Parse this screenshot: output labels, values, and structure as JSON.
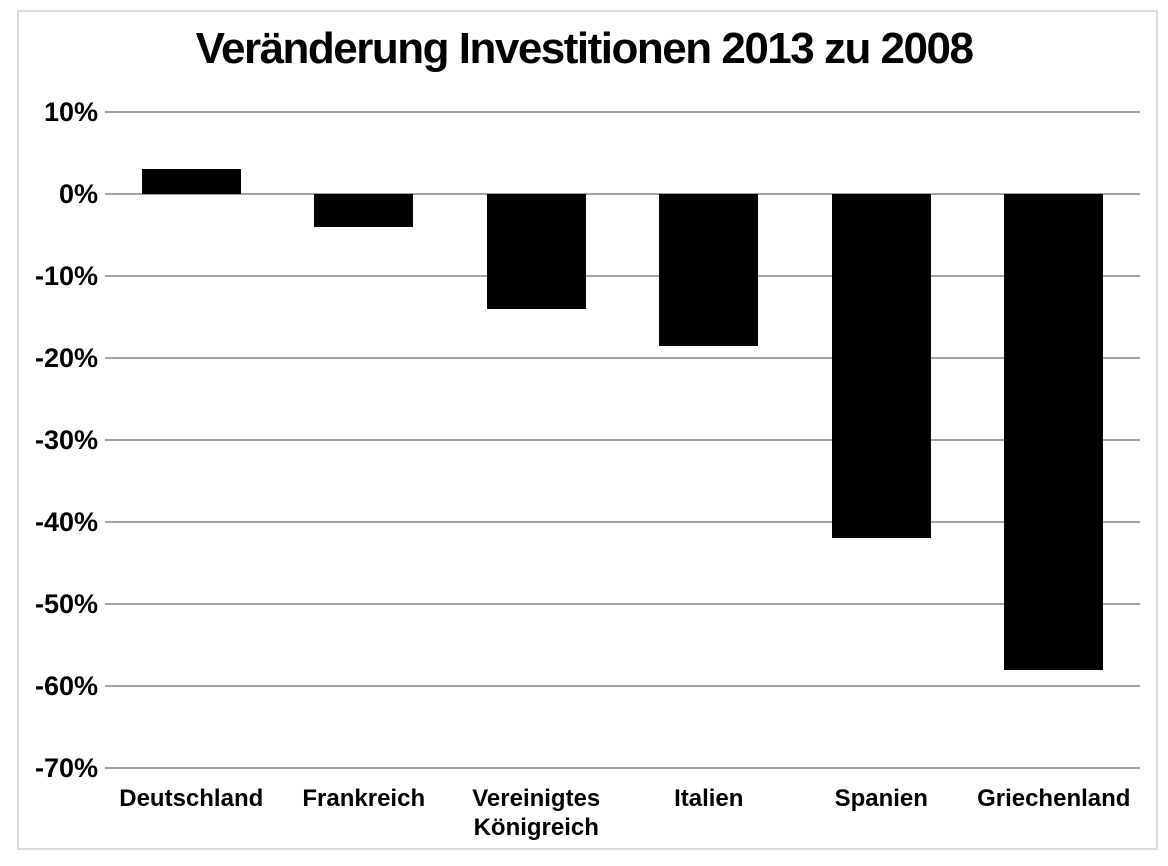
{
  "chart": {
    "title": "Veränderung Investitionen 2013 zu 2008"
  },
  "chart_data": {
    "type": "bar",
    "title": "Veränderung Investitionen 2013 zu 2008",
    "categories": [
      "Deutschland",
      "Frankreich",
      "Vereinigtes Königreich",
      "Italien",
      "Spanien",
      "Griechenland"
    ],
    "values": [
      3,
      -4,
      -14,
      -18.5,
      -42,
      -58
    ],
    "unit": "%",
    "xlabel": "",
    "ylabel": "",
    "ylim": [
      -70,
      10
    ],
    "ytick_step": 10,
    "ytick_labels": [
      "10%",
      "0%",
      "-10%",
      "-20%",
      "-30%",
      "-40%",
      "-50%",
      "-60%",
      "-70%"
    ],
    "grid": true,
    "legend_position": "none",
    "bar_color": "#000000",
    "gridline_color": "#a3a3a3",
    "background_color": "#ffffff",
    "border_color": "#dcdcdc",
    "text_color": "#000000"
  }
}
